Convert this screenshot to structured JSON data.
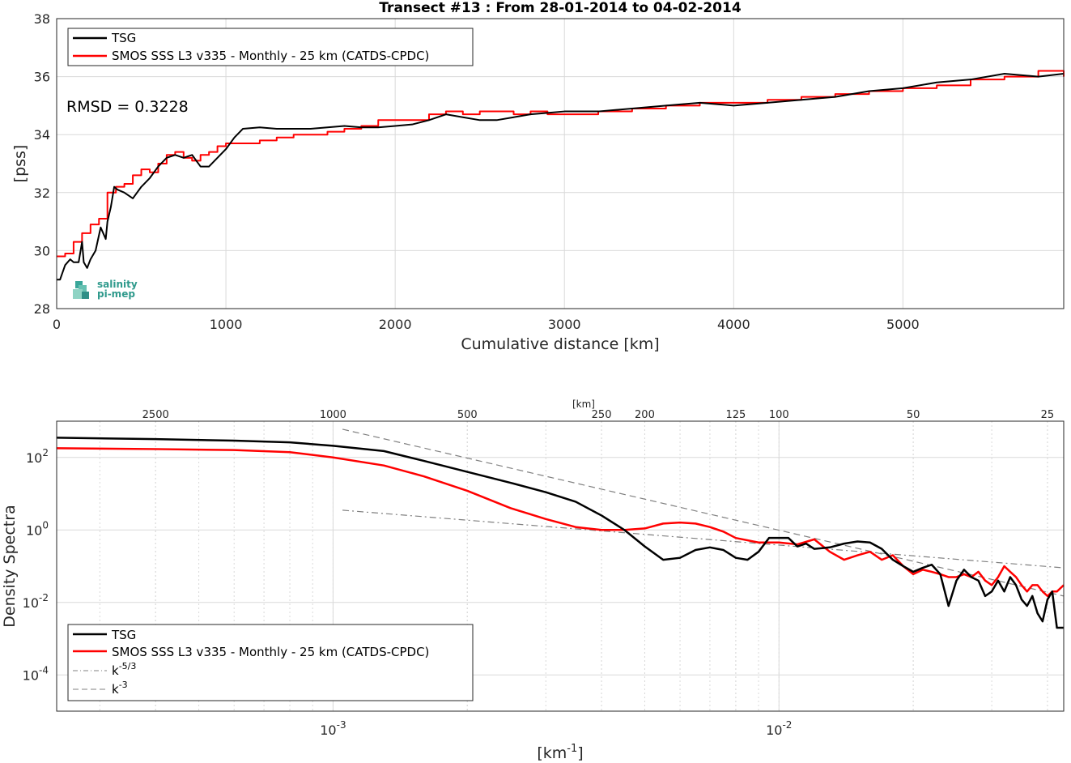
{
  "chart_data": [
    {
      "type": "line",
      "title": "Transect #13 : From 28-01-2014 to 04-02-2014",
      "xlabel": "Cumulative distance [km]",
      "ylabel": "[pss]",
      "xlim": [
        0,
        5950
      ],
      "ylim": [
        28,
        38
      ],
      "x_ticks": [
        "0",
        "1000",
        "2000",
        "3000",
        "4000",
        "5000"
      ],
      "y_ticks": [
        "28",
        "30",
        "32",
        "34",
        "36",
        "38"
      ],
      "grid": true,
      "legend_position": "top-left",
      "annotation": "RMSD = 0.3228",
      "logo_text": [
        "salinity",
        "pi-mep"
      ],
      "series": [
        {
          "name": "TSG",
          "color": "#000000",
          "x": [
            0,
            20,
            50,
            80,
            100,
            130,
            150,
            160,
            170,
            180,
            200,
            230,
            260,
            290,
            300,
            320,
            340,
            360,
            400,
            450,
            500,
            550,
            600,
            650,
            700,
            750,
            800,
            850,
            900,
            950,
            1000,
            1050,
            1100,
            1200,
            1300,
            1500,
            1700,
            1800,
            1900,
            2000,
            2100,
            2200,
            2300,
            2400,
            2500,
            2600,
            2700,
            2800,
            2900,
            3000,
            3200,
            3400,
            3600,
            3800,
            4000,
            4200,
            4400,
            4600,
            4800,
            5000,
            5200,
            5400,
            5600,
            5800,
            5950
          ],
          "values": [
            29.0,
            29.0,
            29.5,
            29.7,
            29.6,
            29.6,
            30.3,
            29.6,
            29.5,
            29.4,
            29.7,
            30.0,
            30.8,
            30.4,
            31.0,
            31.5,
            32.2,
            32.1,
            32.0,
            31.8,
            32.2,
            32.5,
            32.9,
            33.2,
            33.3,
            33.2,
            33.3,
            32.9,
            32.9,
            33.2,
            33.5,
            33.9,
            34.2,
            34.25,
            34.2,
            34.2,
            34.3,
            34.25,
            34.25,
            34.3,
            34.35,
            34.5,
            34.7,
            34.6,
            34.5,
            34.5,
            34.6,
            34.7,
            34.75,
            34.8,
            34.8,
            34.9,
            35.0,
            35.1,
            35.0,
            35.1,
            35.2,
            35.3,
            35.5,
            35.6,
            35.8,
            35.9,
            36.1,
            36.0,
            36.1
          ]
        },
        {
          "name": "SMOS SSS L3 v335 - Monthly - 25 km (CATDS-CPDC)",
          "color": "#ff0000",
          "x": [
            0,
            50,
            100,
            150,
            200,
            250,
            300,
            350,
            400,
            450,
            500,
            550,
            600,
            650,
            700,
            750,
            800,
            850,
            900,
            950,
            1000,
            1100,
            1200,
            1300,
            1400,
            1500,
            1600,
            1700,
            1800,
            1900,
            2000,
            2100,
            2200,
            2300,
            2400,
            2500,
            2600,
            2700,
            2800,
            2900,
            3000,
            3200,
            3400,
            3600,
            3800,
            4000,
            4200,
            4400,
            4600,
            4800,
            5000,
            5200,
            5400,
            5600,
            5800,
            5950
          ],
          "values": [
            29.8,
            29.9,
            30.3,
            30.6,
            30.9,
            31.1,
            32.0,
            32.2,
            32.3,
            32.6,
            32.8,
            32.7,
            33.0,
            33.3,
            33.4,
            33.2,
            33.1,
            33.3,
            33.4,
            33.6,
            33.7,
            33.7,
            33.8,
            33.9,
            34.0,
            34.0,
            34.1,
            34.2,
            34.3,
            34.5,
            34.5,
            34.5,
            34.7,
            34.8,
            34.7,
            34.8,
            34.8,
            34.7,
            34.8,
            34.7,
            34.7,
            34.8,
            34.9,
            35.0,
            35.1,
            35.1,
            35.2,
            35.3,
            35.4,
            35.5,
            35.6,
            35.7,
            35.9,
            36.0,
            36.2,
            36.0
          ]
        }
      ]
    },
    {
      "type": "line",
      "title": "",
      "xlabel": "[km⁻¹]",
      "ylabel": "Density Spectra",
      "x_scale": "log",
      "y_scale": "log",
      "xlim": [
        0.00024,
        0.0435
      ],
      "ylim": [
        1e-05,
        1000
      ],
      "x_ticks": [
        "10⁻³",
        "10⁻²"
      ],
      "y_ticks": [
        "10⁻⁴",
        "10⁻²",
        "10⁰",
        "10²"
      ],
      "top_axis_label": "[km]",
      "top_axis_ticks": [
        "2500",
        "1000",
        "500",
        "250",
        "200",
        "125",
        "100",
        "50",
        "25"
      ],
      "grid": true,
      "legend_position": "bottom-left",
      "series": [
        {
          "name": "TSG",
          "color": "#000000",
          "x": [
            0.00024,
            0.0004,
            0.0006,
            0.0008,
            0.001,
            0.0013,
            0.0016,
            0.002,
            0.0025,
            0.003,
            0.0035,
            0.004,
            0.0045,
            0.005,
            0.0055,
            0.006,
            0.0065,
            0.007,
            0.0075,
            0.008,
            0.0085,
            0.009,
            0.0095,
            0.0105,
            0.011,
            0.0115,
            0.012,
            0.013,
            0.014,
            0.015,
            0.016,
            0.017,
            0.018,
            0.019,
            0.02,
            0.021,
            0.022,
            0.023,
            0.024,
            0.025,
            0.026,
            0.027,
            0.028,
            0.029,
            0.03,
            0.031,
            0.032,
            0.033,
            0.034,
            0.035,
            0.036,
            0.037,
            0.038,
            0.039,
            0.04,
            0.041,
            0.042,
            0.0435
          ],
          "values": [
            350,
            320,
            290,
            260,
            210,
            150,
            80,
            40,
            20,
            11,
            6,
            2.5,
            1.0,
            0.35,
            0.15,
            0.17,
            0.28,
            0.33,
            0.28,
            0.17,
            0.15,
            0.25,
            0.6,
            0.6,
            0.35,
            0.42,
            0.3,
            0.33,
            0.42,
            0.48,
            0.45,
            0.3,
            0.15,
            0.1,
            0.07,
            0.09,
            0.11,
            0.06,
            0.008,
            0.04,
            0.08,
            0.05,
            0.04,
            0.015,
            0.02,
            0.04,
            0.02,
            0.05,
            0.03,
            0.012,
            0.008,
            0.015,
            0.005,
            0.003,
            0.012,
            0.02,
            0.002,
            0.002
          ]
        },
        {
          "name": "SMOS SSS L3 v335 - Monthly - 25 km (CATDS-CPDC)",
          "color": "#ff0000",
          "x": [
            0.00024,
            0.0004,
            0.0006,
            0.0008,
            0.001,
            0.0013,
            0.0016,
            0.002,
            0.0025,
            0.003,
            0.0035,
            0.004,
            0.0045,
            0.005,
            0.0055,
            0.006,
            0.0065,
            0.007,
            0.0075,
            0.008,
            0.009,
            0.01,
            0.011,
            0.012,
            0.013,
            0.014,
            0.015,
            0.016,
            0.017,
            0.018,
            0.019,
            0.02,
            0.021,
            0.022,
            0.023,
            0.024,
            0.025,
            0.026,
            0.027,
            0.028,
            0.029,
            0.03,
            0.031,
            0.032,
            0.033,
            0.034,
            0.035,
            0.036,
            0.037,
            0.038,
            0.039,
            0.04,
            0.041,
            0.042,
            0.0435
          ],
          "values": [
            180,
            170,
            160,
            140,
            100,
            60,
            30,
            12,
            4,
            2,
            1.2,
            1.0,
            1.0,
            1.1,
            1.5,
            1.6,
            1.5,
            1.2,
            0.9,
            0.6,
            0.45,
            0.45,
            0.4,
            0.55,
            0.25,
            0.15,
            0.2,
            0.25,
            0.15,
            0.2,
            0.1,
            0.06,
            0.08,
            0.07,
            0.06,
            0.05,
            0.05,
            0.06,
            0.05,
            0.07,
            0.04,
            0.03,
            0.05,
            0.1,
            0.07,
            0.05,
            0.03,
            0.02,
            0.03,
            0.03,
            0.02,
            0.015,
            0.02,
            0.02,
            0.03
          ]
        },
        {
          "name": "k⁻⁵ᐟ³",
          "label_base": "k",
          "label_sup": "-5/3",
          "color": "#808080",
          "dash": "dash-dot",
          "x": [
            0.00105,
            0.0435
          ],
          "values": [
            3.5,
            0.09
          ]
        },
        {
          "name": "k⁻³",
          "label_base": "k",
          "label_sup": "-3",
          "color": "#808080",
          "dash": "dashed",
          "x": [
            0.00105,
            0.0435
          ],
          "values": [
            600,
            0.015
          ]
        }
      ]
    }
  ]
}
